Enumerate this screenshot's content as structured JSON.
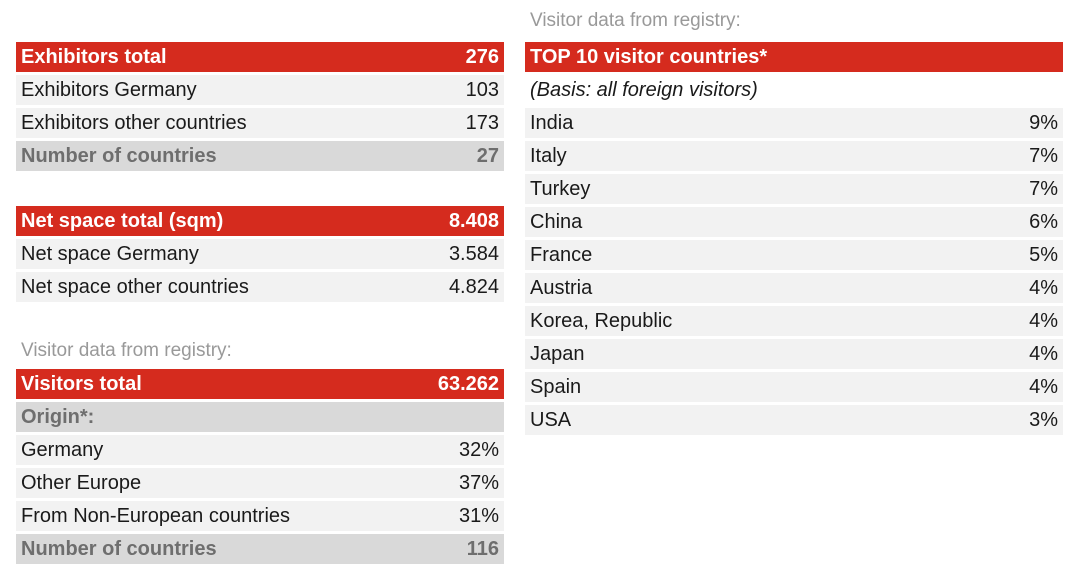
{
  "exhibitors": {
    "title": "Exhibitors total",
    "total": "276",
    "rows": [
      {
        "label": "Exhibitors Germany",
        "value": "103"
      },
      {
        "label": "Exhibitors other countries",
        "value": "173"
      }
    ],
    "countries_label": "Number of countries",
    "countries_value": "27"
  },
  "net_space": {
    "title": "Net space total (sqm)",
    "total": "8.408",
    "rows": [
      {
        "label": "Net space Germany",
        "value": "3.584"
      },
      {
        "label": "Net space other countries",
        "value": "4.824"
      }
    ]
  },
  "visitors": {
    "caption": "Visitor data from registry:",
    "title": "Visitors total",
    "total": "63.262",
    "origin_label": "Origin*:",
    "rows": [
      {
        "label": "Germany",
        "value": "32%"
      },
      {
        "label": "Other Europe",
        "value": "37%"
      },
      {
        "label": "From Non-European countries",
        "value": "31%"
      }
    ],
    "countries_label": "Number of countries",
    "countries_value": "116"
  },
  "top10": {
    "caption": "Visitor data from registry:",
    "title": "TOP 10 visitor countries*",
    "basis": "(Basis: all foreign visitors)",
    "rows": [
      {
        "label": "India",
        "value": "9%"
      },
      {
        "label": "Italy",
        "value": "7%"
      },
      {
        "label": "Turkey",
        "value": "7%"
      },
      {
        "label": "China",
        "value": "6%"
      },
      {
        "label": "France",
        "value": "5%"
      },
      {
        "label": "Austria",
        "value": "4%"
      },
      {
        "label": "Korea, Republic",
        "value": "4%"
      },
      {
        "label": "Japan",
        "value": "4%"
      },
      {
        "label": "Spain",
        "value": "4%"
      },
      {
        "label": "USA",
        "value": "3%"
      }
    ]
  },
  "colors": {
    "header_red": "#d52b1e",
    "row_gray": "#f2f2f2",
    "sub_gray": "#d9d9d9",
    "caption_gray": "#999999"
  }
}
